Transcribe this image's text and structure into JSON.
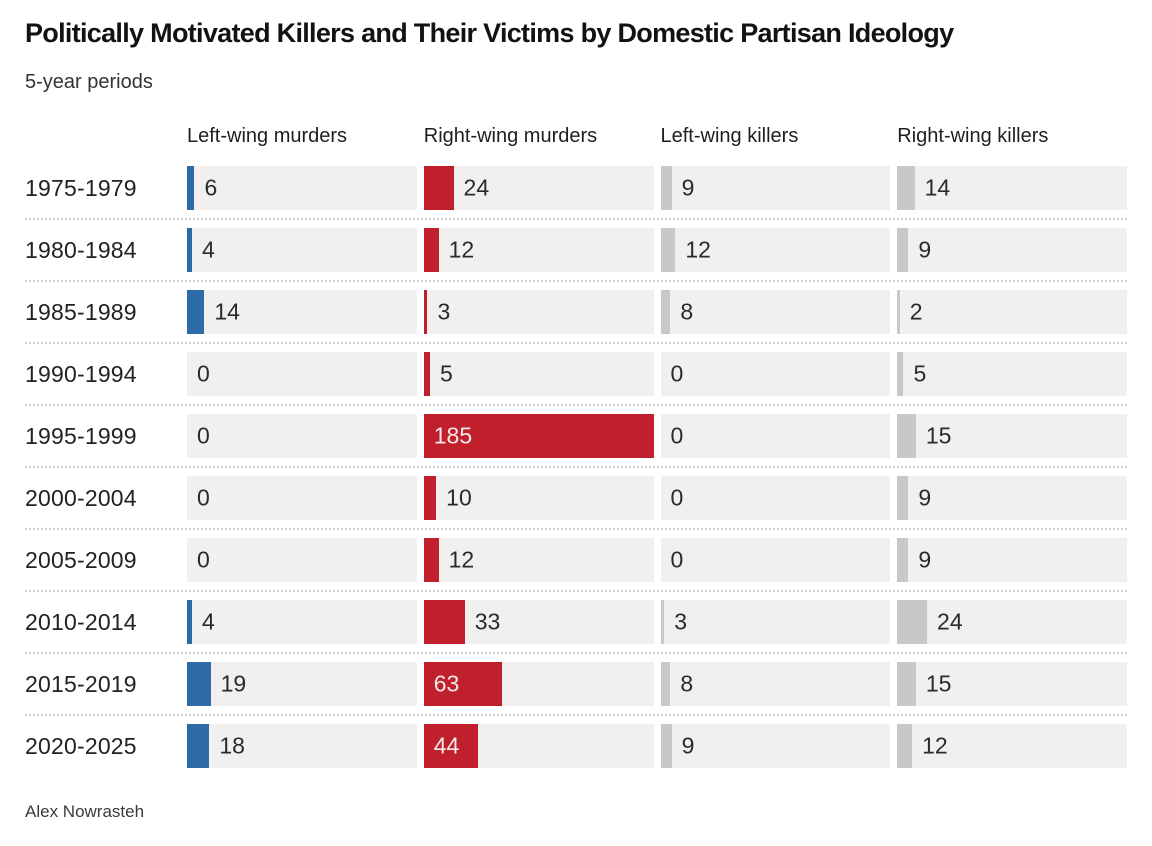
{
  "header": {
    "title": "Politically Motivated Killers and Their Victims by Domestic Partisan Ideology",
    "subtitle": "5-year periods"
  },
  "columns": [
    "Left-wing murders",
    "Right-wing murders",
    "Left-wing killers",
    "Right-wing killers"
  ],
  "footer": {
    "credit": "Alex Nowrasteh"
  },
  "colors": {
    "left_wing_murders_bar": "#2d6ba4",
    "right_wing_murders_bar": "#bf202c",
    "killers_bar": "#c9c8c6",
    "bar_track": "#f1f0ee",
    "inside_label": "#f6e9e9"
  },
  "chart_data": {
    "type": "bar",
    "orientation": "horizontal",
    "title": "Politically Motivated Killers and Their Victims by Domestic Partisan Ideology",
    "subtitle": "5-year periods",
    "credit": "Alex Nowrasteh",
    "max_value": 185,
    "label_inside_threshold": 40,
    "categories": [
      "1975-1979",
      "1980-1984",
      "1985-1989",
      "1990-1994",
      "1995-1999",
      "2000-2004",
      "2005-2009",
      "2010-2014",
      "2015-2019",
      "2020-2025"
    ],
    "series": [
      {
        "name": "Left-wing murders",
        "color": "#2d6ba4",
        "values": [
          6,
          4,
          14,
          0,
          0,
          0,
          0,
          4,
          19,
          18
        ]
      },
      {
        "name": "Right-wing murders",
        "color": "#bf202c",
        "values": [
          24,
          12,
          3,
          5,
          185,
          10,
          12,
          33,
          63,
          44
        ]
      },
      {
        "name": "Left-wing killers",
        "color": "#c9c8c6",
        "values": [
          9,
          12,
          8,
          0,
          0,
          0,
          0,
          3,
          8,
          9
        ]
      },
      {
        "name": "Right-wing killers",
        "color": "#c9c8c6",
        "values": [
          14,
          9,
          2,
          5,
          15,
          9,
          9,
          24,
          15,
          12
        ]
      }
    ]
  }
}
